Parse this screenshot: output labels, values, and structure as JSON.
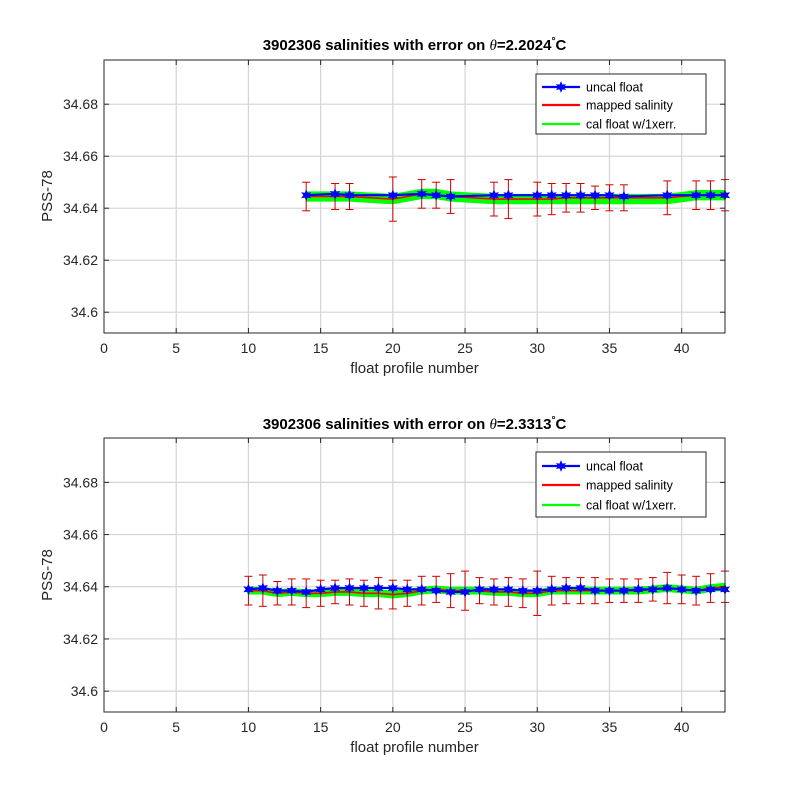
{
  "chart_data": [
    {
      "type": "line",
      "title_prefix": "3902306 salinities with error on ",
      "title_theta": "θ",
      "title_value": "=2.2024",
      "title_degree": "°",
      "title_unit": "C",
      "xlabel": "float profile number",
      "ylabel": "PSS-78",
      "xlim": [
        0,
        43
      ],
      "ylim": [
        34.592,
        34.697
      ],
      "xticks": [
        "0",
        "5",
        "10",
        "15",
        "20",
        "25",
        "30",
        "35",
        "40"
      ],
      "yticks": [
        "34.6",
        "34.62",
        "34.64",
        "34.66",
        "34.68"
      ],
      "grid": true,
      "legend_position": "top-right",
      "legend": [
        "uncal float",
        "mapped salinity",
        "cal float w/1xerr."
      ],
      "colors": {
        "uncal": "#0000ff",
        "mapped": "#ff0000",
        "cal": "#00ff00",
        "errorbar": "#cc0000"
      },
      "x": [
        14,
        16,
        17,
        20,
        22,
        23,
        24,
        27,
        28,
        30,
        31,
        32,
        33,
        34,
        35,
        36,
        39,
        41,
        42,
        43
      ],
      "uncal_values": [
        34.645,
        34.6455,
        34.645,
        34.645,
        34.6455,
        34.645,
        34.6445,
        34.645,
        34.645,
        34.645,
        34.645,
        34.645,
        34.645,
        34.645,
        34.645,
        34.6445,
        34.645,
        34.645,
        34.645,
        34.645
      ],
      "mapped_values": [
        34.6445,
        34.6445,
        34.6445,
        34.6435,
        34.6455,
        34.645,
        34.6445,
        34.6435,
        34.6435,
        34.6435,
        34.6435,
        34.644,
        34.644,
        34.644,
        34.644,
        34.644,
        34.644,
        34.645,
        34.645,
        34.645
      ],
      "mapped_err": [
        0.0055,
        0.005,
        0.005,
        0.0085,
        0.0055,
        0.005,
        0.0065,
        0.0065,
        0.0075,
        0.0065,
        0.006,
        0.0055,
        0.0055,
        0.0045,
        0.005,
        0.005,
        0.0065,
        0.0055,
        0.0055,
        0.006
      ],
      "cal_values": [
        34.6445,
        34.6445,
        34.6445,
        34.6435,
        34.6455,
        34.6455,
        34.6445,
        34.6435,
        34.6435,
        34.6435,
        34.6435,
        34.6435,
        34.6435,
        34.6435,
        34.6435,
        34.6435,
        34.6435,
        34.645,
        34.645,
        34.645
      ],
      "cal_err": [
        0.0018,
        0.0018,
        0.0018,
        0.0018,
        0.0018,
        0.0018,
        0.0018,
        0.0018,
        0.0018,
        0.0018,
        0.0018,
        0.0018,
        0.0018,
        0.0018,
        0.0018,
        0.0018,
        0.0018,
        0.0018,
        0.0018,
        0.0018
      ]
    },
    {
      "type": "line",
      "title_prefix": "3902306 salinities with error on ",
      "title_theta": "θ",
      "title_value": "=2.3313",
      "title_degree": "°",
      "title_unit": "C",
      "xlabel": "float profile number",
      "ylabel": "PSS-78",
      "xlim": [
        0,
        43
      ],
      "ylim": [
        34.592,
        34.697
      ],
      "xticks": [
        "0",
        "5",
        "10",
        "15",
        "20",
        "25",
        "30",
        "35",
        "40"
      ],
      "yticks": [
        "34.6",
        "34.62",
        "34.64",
        "34.66",
        "34.68"
      ],
      "grid": true,
      "legend_position": "top-right",
      "legend": [
        "uncal float",
        "mapped salinity",
        "cal float w/1xerr."
      ],
      "colors": {
        "uncal": "#0000ff",
        "mapped": "#ff0000",
        "cal": "#00ff00",
        "errorbar": "#cc0000"
      },
      "x": [
        10,
        11,
        12,
        13,
        14,
        15,
        16,
        17,
        18,
        19,
        20,
        21,
        22,
        23,
        24,
        25,
        26,
        27,
        28,
        29,
        30,
        31,
        32,
        33,
        34,
        35,
        36,
        37,
        38,
        39,
        40,
        41,
        42,
        43
      ],
      "uncal_values": [
        34.639,
        34.6395,
        34.6385,
        34.6385,
        34.638,
        34.639,
        34.6395,
        34.6395,
        34.6395,
        34.6395,
        34.6395,
        34.639,
        34.639,
        34.6385,
        34.638,
        34.638,
        34.639,
        34.639,
        34.639,
        34.6385,
        34.6385,
        34.639,
        34.6395,
        34.6395,
        34.6385,
        34.6385,
        34.6385,
        34.639,
        34.639,
        34.6395,
        34.639,
        34.6385,
        34.639,
        34.639
      ],
      "mapped_values": [
        34.6385,
        34.6385,
        34.6375,
        34.638,
        34.6375,
        34.6375,
        34.638,
        34.638,
        34.6375,
        34.6375,
        34.637,
        34.6375,
        34.6385,
        34.639,
        34.6385,
        34.6385,
        34.6385,
        34.638,
        34.638,
        34.6375,
        34.6375,
        34.6385,
        34.6385,
        34.6385,
        34.6385,
        34.6385,
        34.6385,
        34.6385,
        34.639,
        34.6395,
        34.639,
        34.6385,
        34.6395,
        34.64
      ],
      "mapped_err": [
        0.0055,
        0.006,
        0.0045,
        0.005,
        0.0055,
        0.005,
        0.0045,
        0.005,
        0.005,
        0.006,
        0.0055,
        0.005,
        0.0055,
        0.005,
        0.0065,
        0.0075,
        0.005,
        0.005,
        0.0055,
        0.0055,
        0.0085,
        0.0055,
        0.005,
        0.005,
        0.005,
        0.0045,
        0.0045,
        0.0045,
        0.0045,
        0.006,
        0.0055,
        0.0055,
        0.0055,
        0.006
      ],
      "cal_values": [
        34.6385,
        34.6385,
        34.6375,
        34.638,
        34.6375,
        34.6375,
        34.638,
        34.638,
        34.6375,
        34.6375,
        34.637,
        34.6375,
        34.6385,
        34.639,
        34.6385,
        34.6385,
        34.6385,
        34.638,
        34.638,
        34.6375,
        34.6375,
        34.6385,
        34.6385,
        34.6385,
        34.6385,
        34.6385,
        34.6385,
        34.6385,
        34.639,
        34.6395,
        34.639,
        34.6385,
        34.6395,
        34.64
      ],
      "cal_err": [
        0.0013,
        0.0013,
        0.0013,
        0.0013,
        0.0013,
        0.0013,
        0.0013,
        0.0013,
        0.0013,
        0.0013,
        0.0013,
        0.0013,
        0.0013,
        0.0013,
        0.0013,
        0.0013,
        0.0013,
        0.0013,
        0.0013,
        0.0013,
        0.0013,
        0.0013,
        0.0013,
        0.0013,
        0.0013,
        0.0013,
        0.0013,
        0.0013,
        0.0013,
        0.0013,
        0.0013,
        0.0013,
        0.0013,
        0.0013
      ]
    }
  ]
}
